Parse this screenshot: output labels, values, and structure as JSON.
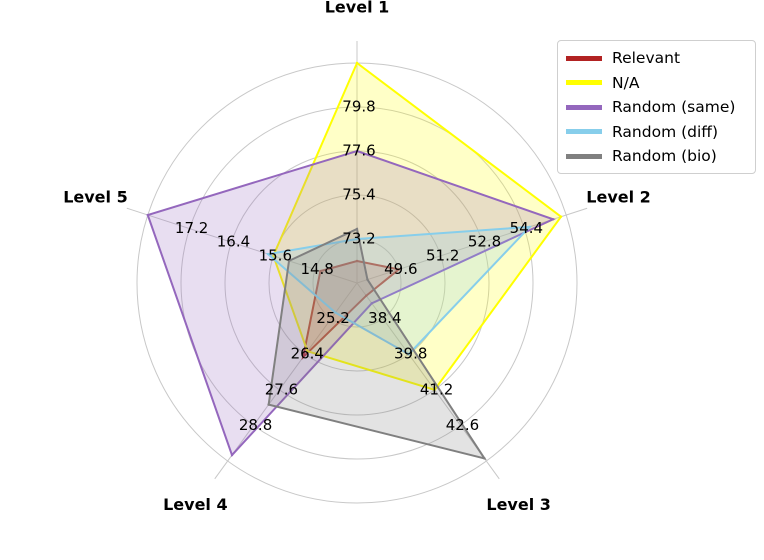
{
  "chart_data": {
    "type": "radar",
    "axes": [
      {
        "name": "Level 1",
        "ticks": [
          "73.2",
          "75.4",
          "77.6",
          "79.8"
        ],
        "min": 71.0,
        "max": 82.0
      },
      {
        "name": "Level 2",
        "ticks": [
          "49.6",
          "51.2",
          "52.8",
          "54.4"
        ],
        "min": 48.0,
        "max": 56.0
      },
      {
        "name": "Level 3",
        "ticks": [
          "38.4",
          "39.8",
          "41.2",
          "42.6"
        ],
        "min": 37.0,
        "max": 44.0
      },
      {
        "name": "Level 4",
        "ticks": [
          "25.2",
          "26.4",
          "27.6",
          "28.8"
        ],
        "min": 24.0,
        "max": 30.0
      },
      {
        "name": "Level 5",
        "ticks": [
          "14.8",
          "15.6",
          "16.4",
          "17.2"
        ],
        "min": 14.0,
        "max": 18.0
      }
    ],
    "series": [
      {
        "name": "Relevant",
        "color": "#b22222",
        "values": [
          72.1,
          49.6,
          37.5,
          26.5,
          14.7
        ]
      },
      {
        "name": "N/A",
        "color": "#ffff00",
        "values": [
          82.0,
          55.8,
          41.2,
          26.3,
          15.6
        ]
      },
      {
        "name": "Random (same)",
        "color": "#9467bd",
        "values": [
          77.6,
          55.5,
          37.8,
          29.8,
          18.0
        ]
      },
      {
        "name": "Random (diff)",
        "color": "#87ceeb",
        "values": [
          73.2,
          54.6,
          39.8,
          25.0,
          15.7
        ]
      },
      {
        "name": "Random (bio)",
        "color": "#808080",
        "values": [
          73.7,
          48.4,
          43.9,
          28.1,
          15.3
        ]
      }
    ],
    "grid": true,
    "legend_position": "top-right"
  }
}
